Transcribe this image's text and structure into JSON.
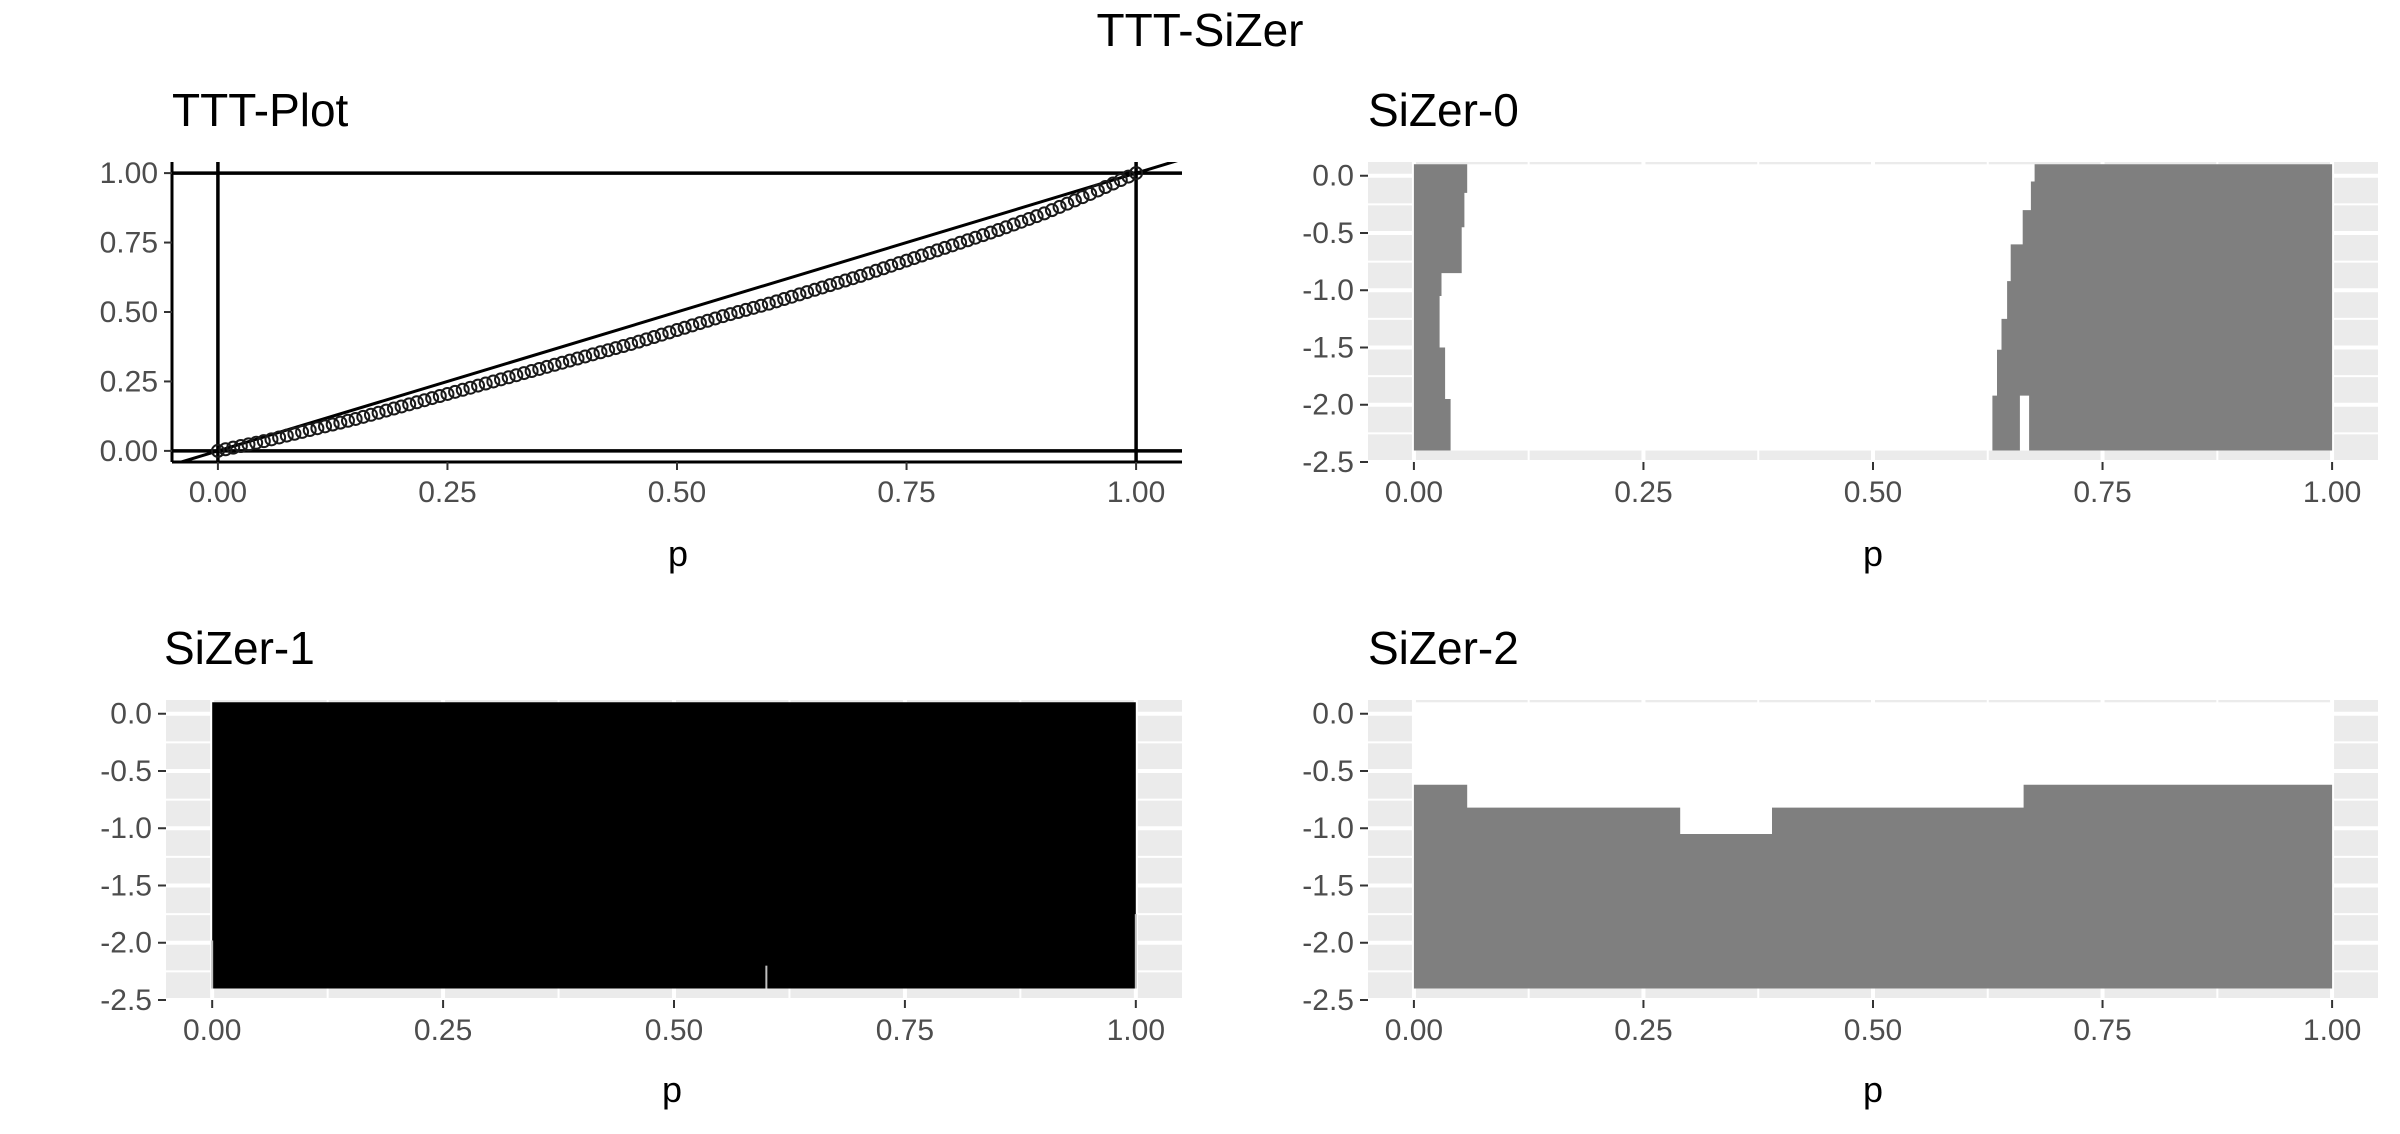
{
  "figure": {
    "title": "TTT-SiZer"
  },
  "colors": {
    "panel_bg": "#ebebeb",
    "grid": "#ffffff",
    "sizer_gray": "#7f7f7f",
    "sizer_black": "#000000",
    "line": "#000000"
  },
  "chart_data": [
    {
      "id": "ttt",
      "type": "scatter",
      "title": "TTT-Plot",
      "xlabel": "p",
      "ylabel": "",
      "xlim": [
        -0.05,
        1.05
      ],
      "ylim": [
        -0.04,
        1.04
      ],
      "xticks": [
        "0.00",
        "0.25",
        "0.50",
        "0.75",
        "1.00"
      ],
      "yticks": [
        "0.00",
        "0.25",
        "0.50",
        "0.75",
        "1.00"
      ],
      "reference_lines": {
        "diagonal": true,
        "hlines": [
          0,
          1
        ],
        "vlines": [
          0,
          1
        ]
      },
      "series": [
        {
          "x": [
            0,
            0.05,
            0.1,
            0.15,
            0.2,
            0.25,
            0.3,
            0.35,
            0.4,
            0.45,
            0.5,
            0.55,
            0.6,
            0.65,
            0.7,
            0.75,
            0.8,
            0.85,
            0.9,
            0.95,
            1.0
          ],
          "y": [
            0,
            0.035,
            0.075,
            0.115,
            0.16,
            0.205,
            0.25,
            0.295,
            0.34,
            0.385,
            0.435,
            0.485,
            0.53,
            0.58,
            0.63,
            0.685,
            0.74,
            0.795,
            0.855,
            0.925,
            1.0
          ]
        }
      ],
      "grid": false
    },
    {
      "id": "sizer0",
      "type": "heatmap",
      "title": "SiZer-0",
      "xlabel": "p",
      "xlim": [
        -0.05,
        1.05
      ],
      "ylim": [
        -2.5,
        0.12
      ],
      "xticks": [
        "0.00",
        "0.25",
        "0.50",
        "0.75",
        "1.00"
      ],
      "yticks": [
        "0.0",
        "-0.5",
        "-1.0",
        "-1.5",
        "-2.0",
        "-2.5"
      ],
      "x_domain": [
        0,
        1
      ],
      "y_domain": [
        -2.4,
        0.1
      ],
      "grid": true,
      "regions": [
        {
          "color": "gray",
          "polygon": [
            [
              0,
              0.1
            ],
            [
              0.058,
              0.1
            ],
            [
              0.058,
              -0.15
            ],
            [
              0.055,
              -0.15
            ],
            [
              0.055,
              -0.45
            ],
            [
              0.052,
              -0.45
            ],
            [
              0.052,
              -0.85
            ],
            [
              0.03,
              -0.85
            ],
            [
              0.03,
              -1.05
            ],
            [
              0.028,
              -1.05
            ],
            [
              0.028,
              -1.5
            ],
            [
              0.034,
              -1.5
            ],
            [
              0.034,
              -1.95
            ],
            [
              0.04,
              -1.95
            ],
            [
              0.04,
              -2.4
            ],
            [
              0,
              -2.4
            ]
          ]
        },
        {
          "color": "gray",
          "polygon": [
            [
              0.676,
              0.1
            ],
            [
              1,
              0.1
            ],
            [
              1,
              -2.4
            ],
            [
              0.67,
              -2.4
            ],
            [
              0.67,
              -1.92
            ],
            [
              0.66,
              -1.92
            ],
            [
              0.66,
              -2.4
            ],
            [
              0.63,
              -2.4
            ],
            [
              0.63,
              -1.92
            ],
            [
              0.635,
              -1.92
            ],
            [
              0.635,
              -1.52
            ],
            [
              0.64,
              -1.52
            ],
            [
              0.64,
              -1.25
            ],
            [
              0.646,
              -1.25
            ],
            [
              0.646,
              -0.92
            ],
            [
              0.65,
              -0.92
            ],
            [
              0.65,
              -0.6
            ],
            [
              0.663,
              -0.6
            ],
            [
              0.663,
              -0.3
            ],
            [
              0.672,
              -0.3
            ],
            [
              0.672,
              -0.05
            ],
            [
              0.676,
              -0.05
            ]
          ]
        }
      ]
    },
    {
      "id": "sizer1",
      "type": "heatmap",
      "title": "SiZer-1",
      "xlabel": "p",
      "xlim": [
        -0.05,
        1.05
      ],
      "ylim": [
        -2.5,
        0.12
      ],
      "xticks": [
        "0.00",
        "0.25",
        "0.50",
        "0.75",
        "1.00"
      ],
      "yticks": [
        "0.0",
        "-0.5",
        "-1.0",
        "-1.5",
        "-2.0",
        "-2.5"
      ],
      "x_domain": [
        0,
        1
      ],
      "y_domain": [
        -2.4,
        0.1
      ],
      "grid": true,
      "regions": [
        {
          "color": "black",
          "polygon": [
            [
              0,
              0.1
            ],
            [
              1,
              0.1
            ],
            [
              1,
              -2.4
            ],
            [
              0,
              -2.4
            ]
          ]
        }
      ],
      "gaps": [
        {
          "x": 0.0,
          "y0": -2.4,
          "y1": -1.98
        },
        {
          "x": 0.6,
          "y0": -2.4,
          "y1": -2.2
        },
        {
          "x": 1.0,
          "y0": -2.4,
          "y1": -1.75
        }
      ]
    },
    {
      "id": "sizer2",
      "type": "heatmap",
      "title": "SiZer-2",
      "xlabel": "p",
      "xlim": [
        -0.05,
        1.05
      ],
      "ylim": [
        -2.5,
        0.12
      ],
      "xticks": [
        "0.00",
        "0.25",
        "0.50",
        "0.75",
        "1.00"
      ],
      "yticks": [
        "0.0",
        "-0.5",
        "-1.0",
        "-1.5",
        "-2.0",
        "-2.5"
      ],
      "x_domain": [
        0,
        1
      ],
      "y_domain": [
        -2.4,
        0.1
      ],
      "grid": true,
      "regions": [
        {
          "color": "gray",
          "polygon": [
            [
              0,
              -0.62
            ],
            [
              0.058,
              -0.62
            ],
            [
              0.058,
              -0.82
            ],
            [
              0.29,
              -0.82
            ],
            [
              0.29,
              -1.05
            ],
            [
              0.39,
              -1.05
            ],
            [
              0.39,
              -0.82
            ],
            [
              0.664,
              -0.82
            ],
            [
              0.664,
              -0.62
            ],
            [
              1,
              -0.62
            ],
            [
              1,
              -2.4
            ],
            [
              0,
              -2.4
            ]
          ]
        }
      ]
    }
  ]
}
